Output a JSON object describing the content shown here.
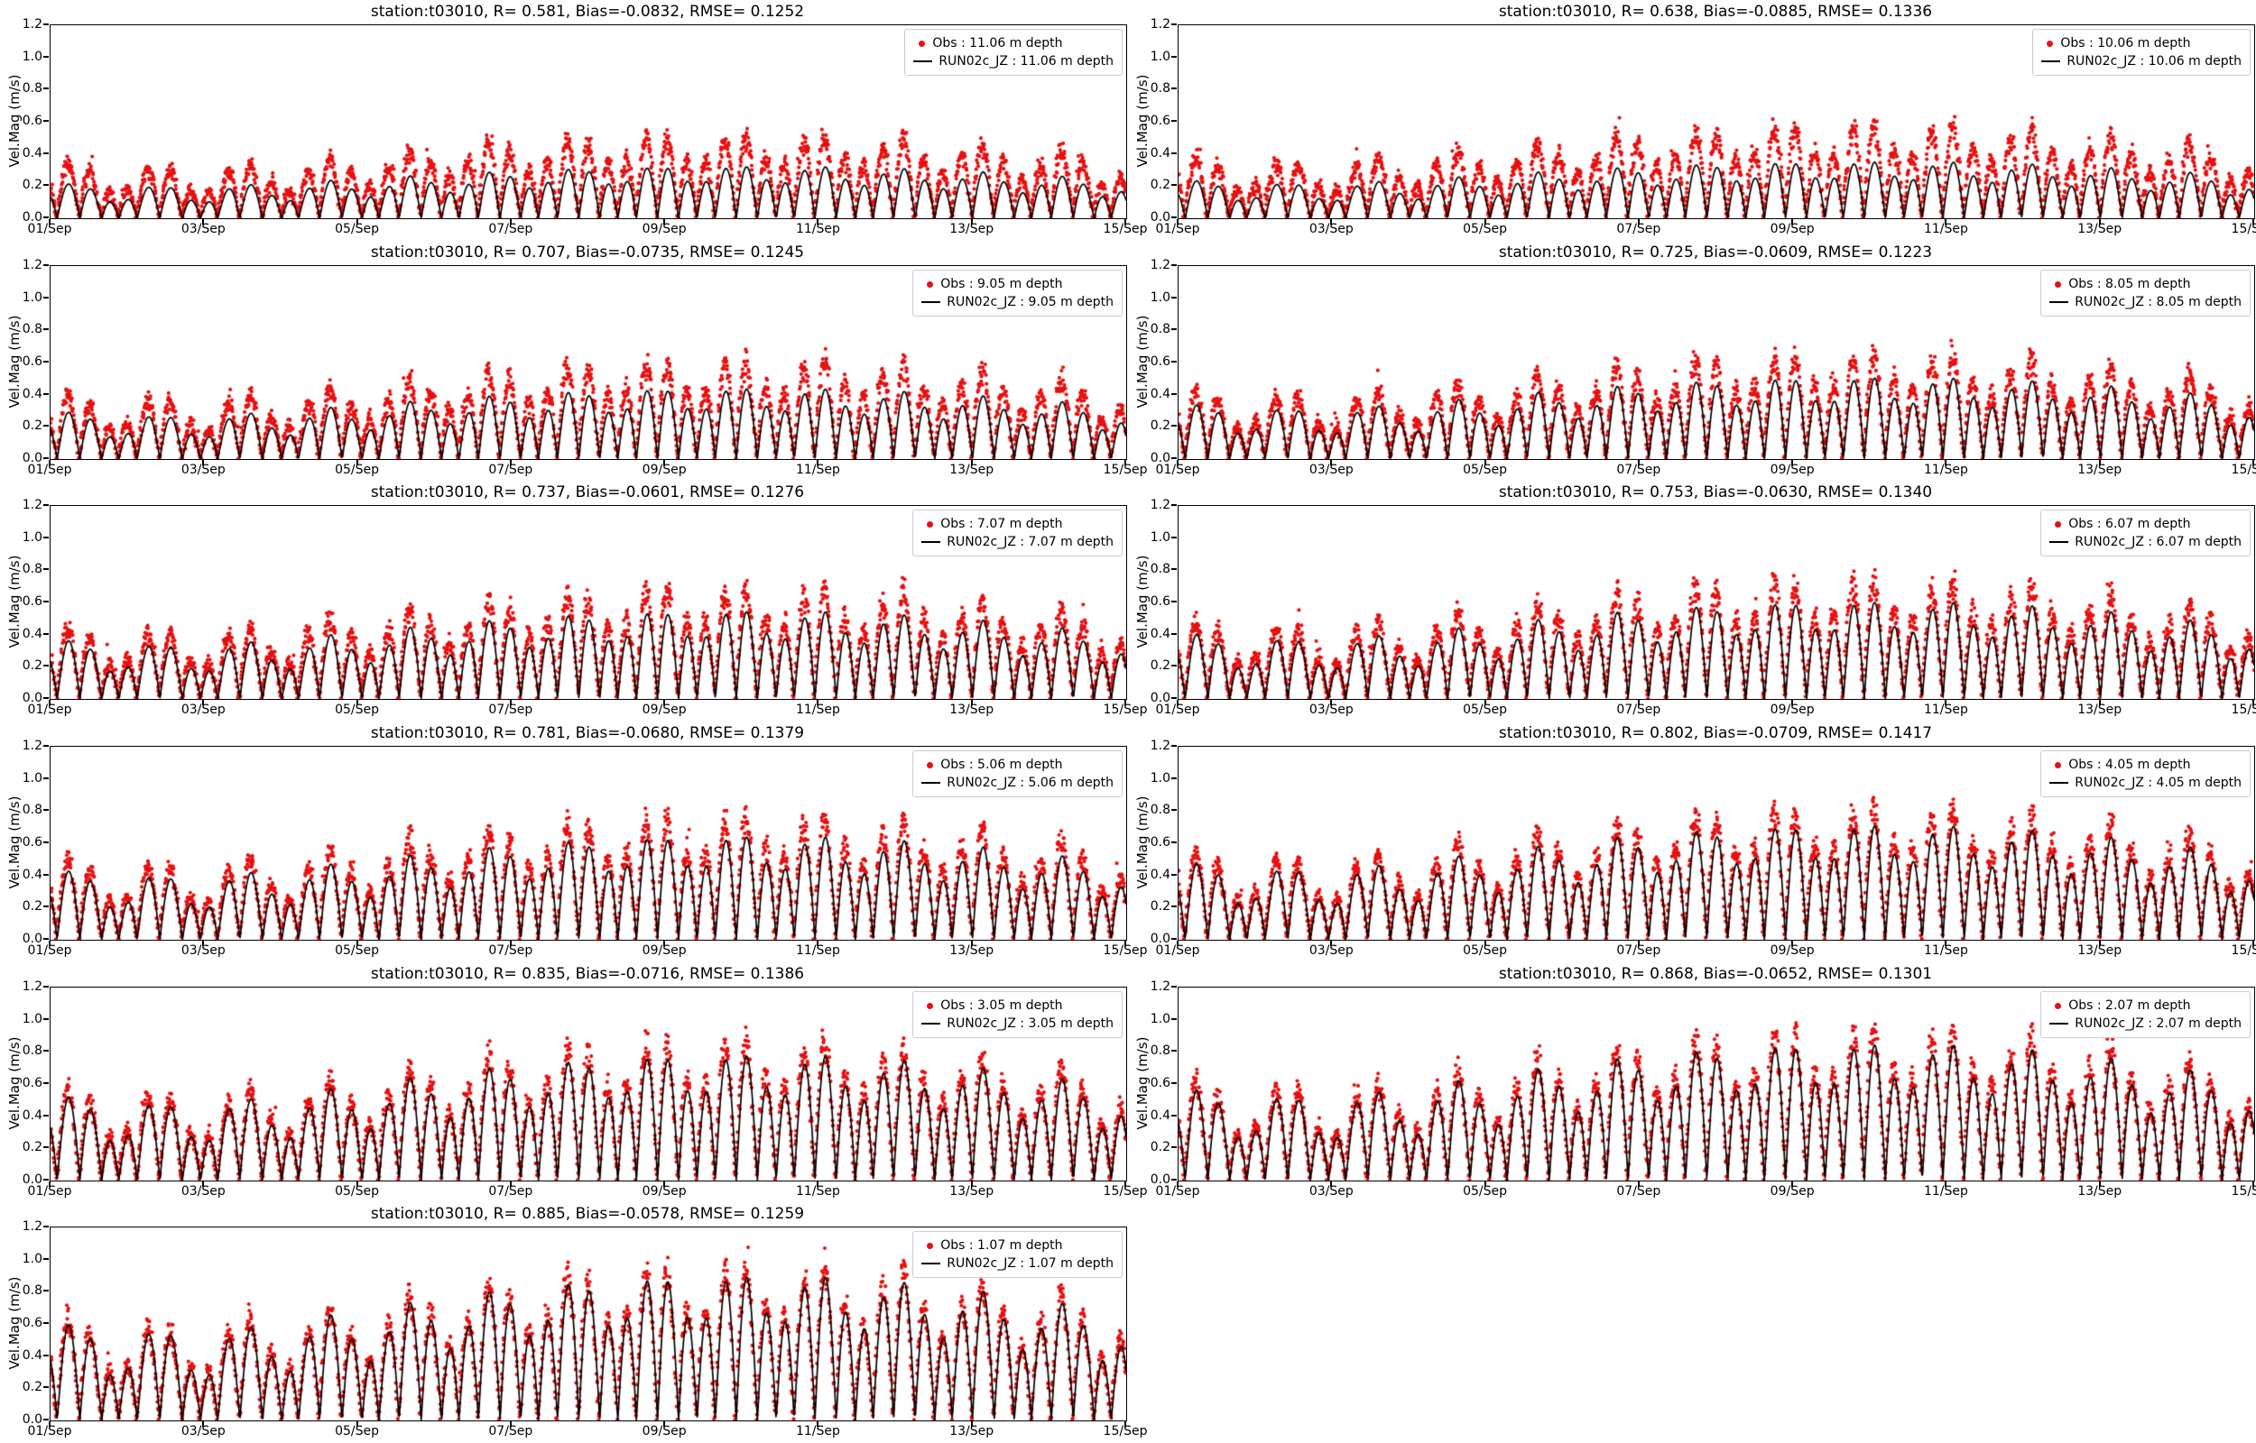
{
  "figure": {
    "background": "#ffffff",
    "ylabel": "Vel.Mag (m/s)",
    "x_tick_labels": [
      "01/Sep",
      "03/Sep",
      "05/Sep",
      "07/Sep",
      "09/Sep",
      "11/Sep",
      "13/Sep",
      "15/Sep"
    ],
    "y_tick_labels": [
      "0.0",
      "0.2",
      "0.4",
      "0.6",
      "0.8",
      "1.0",
      "1.2"
    ],
    "xlim_days": [
      0,
      14
    ],
    "ylim": [
      0,
      1.2
    ],
    "grid": false,
    "legend_position": "upper right",
    "colors": {
      "obs": "#e81010",
      "model": "#000000",
      "legend_border": "#cccccc",
      "axes": "#000000"
    },
    "layout": {
      "rows": 6,
      "cols": 2,
      "panels_count": 11
    }
  },
  "signal_model": {
    "description": "Tidal velocity-magnitude time series, 01/Sep to 15/Sep, ~4 peaks per day (rectified semidiurnal tide with diurnal inequality and spring-neap modulation). Red dots: observations (dense ~8 min sampling, noisy, biased high relative to model). Black line: model RUN02c_JZ.",
    "constituents": {
      "M2_period_h": 12.42,
      "S2_period_h": 12.0,
      "S2_rel_amp": 0.3,
      "S2_phase": 2.5,
      "K1_period_h": 23.93,
      "K1_rel_amp": 0.28,
      "K1_phase": 2.0
    }
  },
  "chart_data": [
    {
      "type": "scatter+line",
      "title": "station:t03010, R= 0.581, Bias=-0.0832, RMSE= 0.1252",
      "station": "t03010",
      "R": 0.581,
      "bias": -0.0832,
      "rmse": 0.1252,
      "depth": "11.06 m depth",
      "legend": [
        "Obs : 11.06 m depth",
        "RUN02c_JZ : 11.06 m depth"
      ],
      "ylim": [
        0,
        1.2
      ],
      "series": [
        {
          "name": "Obs",
          "type": "scatter",
          "color": "#e81010",
          "peak_amplitude": 0.52
        },
        {
          "name": "RUN02c_JZ",
          "type": "line",
          "color": "#000000",
          "peak_amplitude": 0.33
        }
      ]
    },
    {
      "type": "scatter+line",
      "title": "station:t03010, R= 0.638, Bias=-0.0885, RMSE= 0.1336",
      "station": "t03010",
      "R": 0.638,
      "bias": -0.0885,
      "rmse": 0.1336,
      "depth": "10.06 m depth",
      "legend": [
        "Obs : 10.06 m depth",
        "RUN02c_JZ : 10.06 m depth"
      ],
      "ylim": [
        0,
        1.2
      ],
      "series": [
        {
          "name": "Obs",
          "type": "scatter",
          "color": "#e81010",
          "peak_amplitude": 0.58
        },
        {
          "name": "RUN02c_JZ",
          "type": "line",
          "color": "#000000",
          "peak_amplitude": 0.36
        }
      ]
    },
    {
      "type": "scatter+line",
      "title": "station:t03010, R= 0.707, Bias=-0.0735, RMSE= 0.1245",
      "station": "t03010",
      "R": 0.707,
      "bias": -0.0735,
      "rmse": 0.1245,
      "depth": "9.05 m depth",
      "legend": [
        "Obs : 9.05 m depth",
        "RUN02c_JZ : 9.05 m depth"
      ],
      "ylim": [
        0,
        1.2
      ],
      "series": [
        {
          "name": "Obs",
          "type": "scatter",
          "color": "#e81010",
          "peak_amplitude": 0.62
        },
        {
          "name": "RUN02c_JZ",
          "type": "line",
          "color": "#000000",
          "peak_amplitude": 0.45
        }
      ]
    },
    {
      "type": "scatter+line",
      "title": "station:t03010, R= 0.725, Bias=-0.0609, RMSE= 0.1223",
      "station": "t03010",
      "R": 0.725,
      "bias": -0.0609,
      "rmse": 0.1223,
      "depth": "8.05 m depth",
      "legend": [
        "Obs : 8.05 m depth",
        "RUN02c_JZ : 8.05 m depth"
      ],
      "ylim": [
        0,
        1.2
      ],
      "series": [
        {
          "name": "Obs",
          "type": "scatter",
          "color": "#e81010",
          "peak_amplitude": 0.66
        },
        {
          "name": "RUN02c_JZ",
          "type": "line",
          "color": "#000000",
          "peak_amplitude": 0.52
        }
      ]
    },
    {
      "type": "scatter+line",
      "title": "station:t03010, R= 0.737, Bias=-0.0601, RMSE= 0.1276",
      "station": "t03010",
      "R": 0.737,
      "bias": -0.0601,
      "rmse": 0.1276,
      "depth": "7.07 m depth",
      "legend": [
        "Obs : 7.07 m depth",
        "RUN02c_JZ : 7.07 m depth"
      ],
      "ylim": [
        0,
        1.2
      ],
      "series": [
        {
          "name": "Obs",
          "type": "scatter",
          "color": "#e81010",
          "peak_amplitude": 0.7
        },
        {
          "name": "RUN02c_JZ",
          "type": "line",
          "color": "#000000",
          "peak_amplitude": 0.56
        }
      ]
    },
    {
      "type": "scatter+line",
      "title": "station:t03010, R= 0.753, Bias=-0.0630, RMSE= 0.1340",
      "station": "t03010",
      "R": 0.753,
      "bias": -0.063,
      "rmse": 0.134,
      "depth": "6.07 m depth",
      "legend": [
        "Obs : 6.07 m depth",
        "RUN02c_JZ : 6.07 m depth"
      ],
      "ylim": [
        0,
        1.2
      ],
      "series": [
        {
          "name": "Obs",
          "type": "scatter",
          "color": "#e81010",
          "peak_amplitude": 0.75
        },
        {
          "name": "RUN02c_JZ",
          "type": "line",
          "color": "#000000",
          "peak_amplitude": 0.62
        }
      ]
    },
    {
      "type": "scatter+line",
      "title": "station:t03010, R= 0.781, Bias=-0.0680, RMSE= 0.1379",
      "station": "t03010",
      "R": 0.781,
      "bias": -0.068,
      "rmse": 0.1379,
      "depth": "5.06 m depth",
      "legend": [
        "Obs : 5.06 m depth",
        "RUN02c_JZ : 5.06 m depth"
      ],
      "ylim": [
        0,
        1.2
      ],
      "series": [
        {
          "name": "Obs",
          "type": "scatter",
          "color": "#e81010",
          "peak_amplitude": 0.78
        },
        {
          "name": "RUN02c_JZ",
          "type": "line",
          "color": "#000000",
          "peak_amplitude": 0.66
        }
      ]
    },
    {
      "type": "scatter+line",
      "title": "station:t03010, R= 0.802, Bias=-0.0709, RMSE= 0.1417",
      "station": "t03010",
      "R": 0.802,
      "bias": -0.0709,
      "rmse": 0.1417,
      "depth": "4.05 m depth",
      "legend": [
        "Obs : 4.05 m depth",
        "RUN02c_JZ : 4.05 m depth"
      ],
      "ylim": [
        0,
        1.2
      ],
      "series": [
        {
          "name": "Obs",
          "type": "scatter",
          "color": "#e81010",
          "peak_amplitude": 0.83
        },
        {
          "name": "RUN02c_JZ",
          "type": "line",
          "color": "#000000",
          "peak_amplitude": 0.73
        }
      ]
    },
    {
      "type": "scatter+line",
      "title": "station:t03010, R= 0.835, Bias=-0.0716, RMSE= 0.1386",
      "station": "t03010",
      "R": 0.835,
      "bias": -0.0716,
      "rmse": 0.1386,
      "depth": "3.05 m depth",
      "legend": [
        "Obs : 3.05 m depth",
        "RUN02c_JZ : 3.05 m depth"
      ],
      "ylim": [
        0,
        1.2
      ],
      "series": [
        {
          "name": "Obs",
          "type": "scatter",
          "color": "#e81010",
          "peak_amplitude": 0.88
        },
        {
          "name": "RUN02c_JZ",
          "type": "line",
          "color": "#000000",
          "peak_amplitude": 0.8
        }
      ]
    },
    {
      "type": "scatter+line",
      "title": "station:t03010, R= 0.868, Bias=-0.0652, RMSE= 0.1301",
      "station": "t03010",
      "R": 0.868,
      "bias": -0.0652,
      "rmse": 0.1301,
      "depth": "2.07 m depth",
      "legend": [
        "Obs : 2.07 m depth",
        "RUN02c_JZ : 2.07 m depth"
      ],
      "ylim": [
        0,
        1.2
      ],
      "series": [
        {
          "name": "Obs",
          "type": "scatter",
          "color": "#e81010",
          "peak_amplitude": 0.95
        },
        {
          "name": "RUN02c_JZ",
          "type": "line",
          "color": "#000000",
          "peak_amplitude": 0.87
        }
      ]
    },
    {
      "type": "scatter+line",
      "title": "station:t03010, R= 0.885, Bias=-0.0578, RMSE= 0.1259",
      "station": "t03010",
      "R": 0.885,
      "bias": -0.0578,
      "rmse": 0.1259,
      "depth": "1.07 m depth",
      "legend": [
        "Obs : 1.07 m depth",
        "RUN02c_JZ : 1.07 m depth"
      ],
      "ylim": [
        0,
        1.2
      ],
      "series": [
        {
          "name": "Obs",
          "type": "scatter",
          "color": "#e81010",
          "peak_amplitude": 0.97
        },
        {
          "name": "RUN02c_JZ",
          "type": "line",
          "color": "#000000",
          "peak_amplitude": 0.92
        }
      ]
    }
  ]
}
